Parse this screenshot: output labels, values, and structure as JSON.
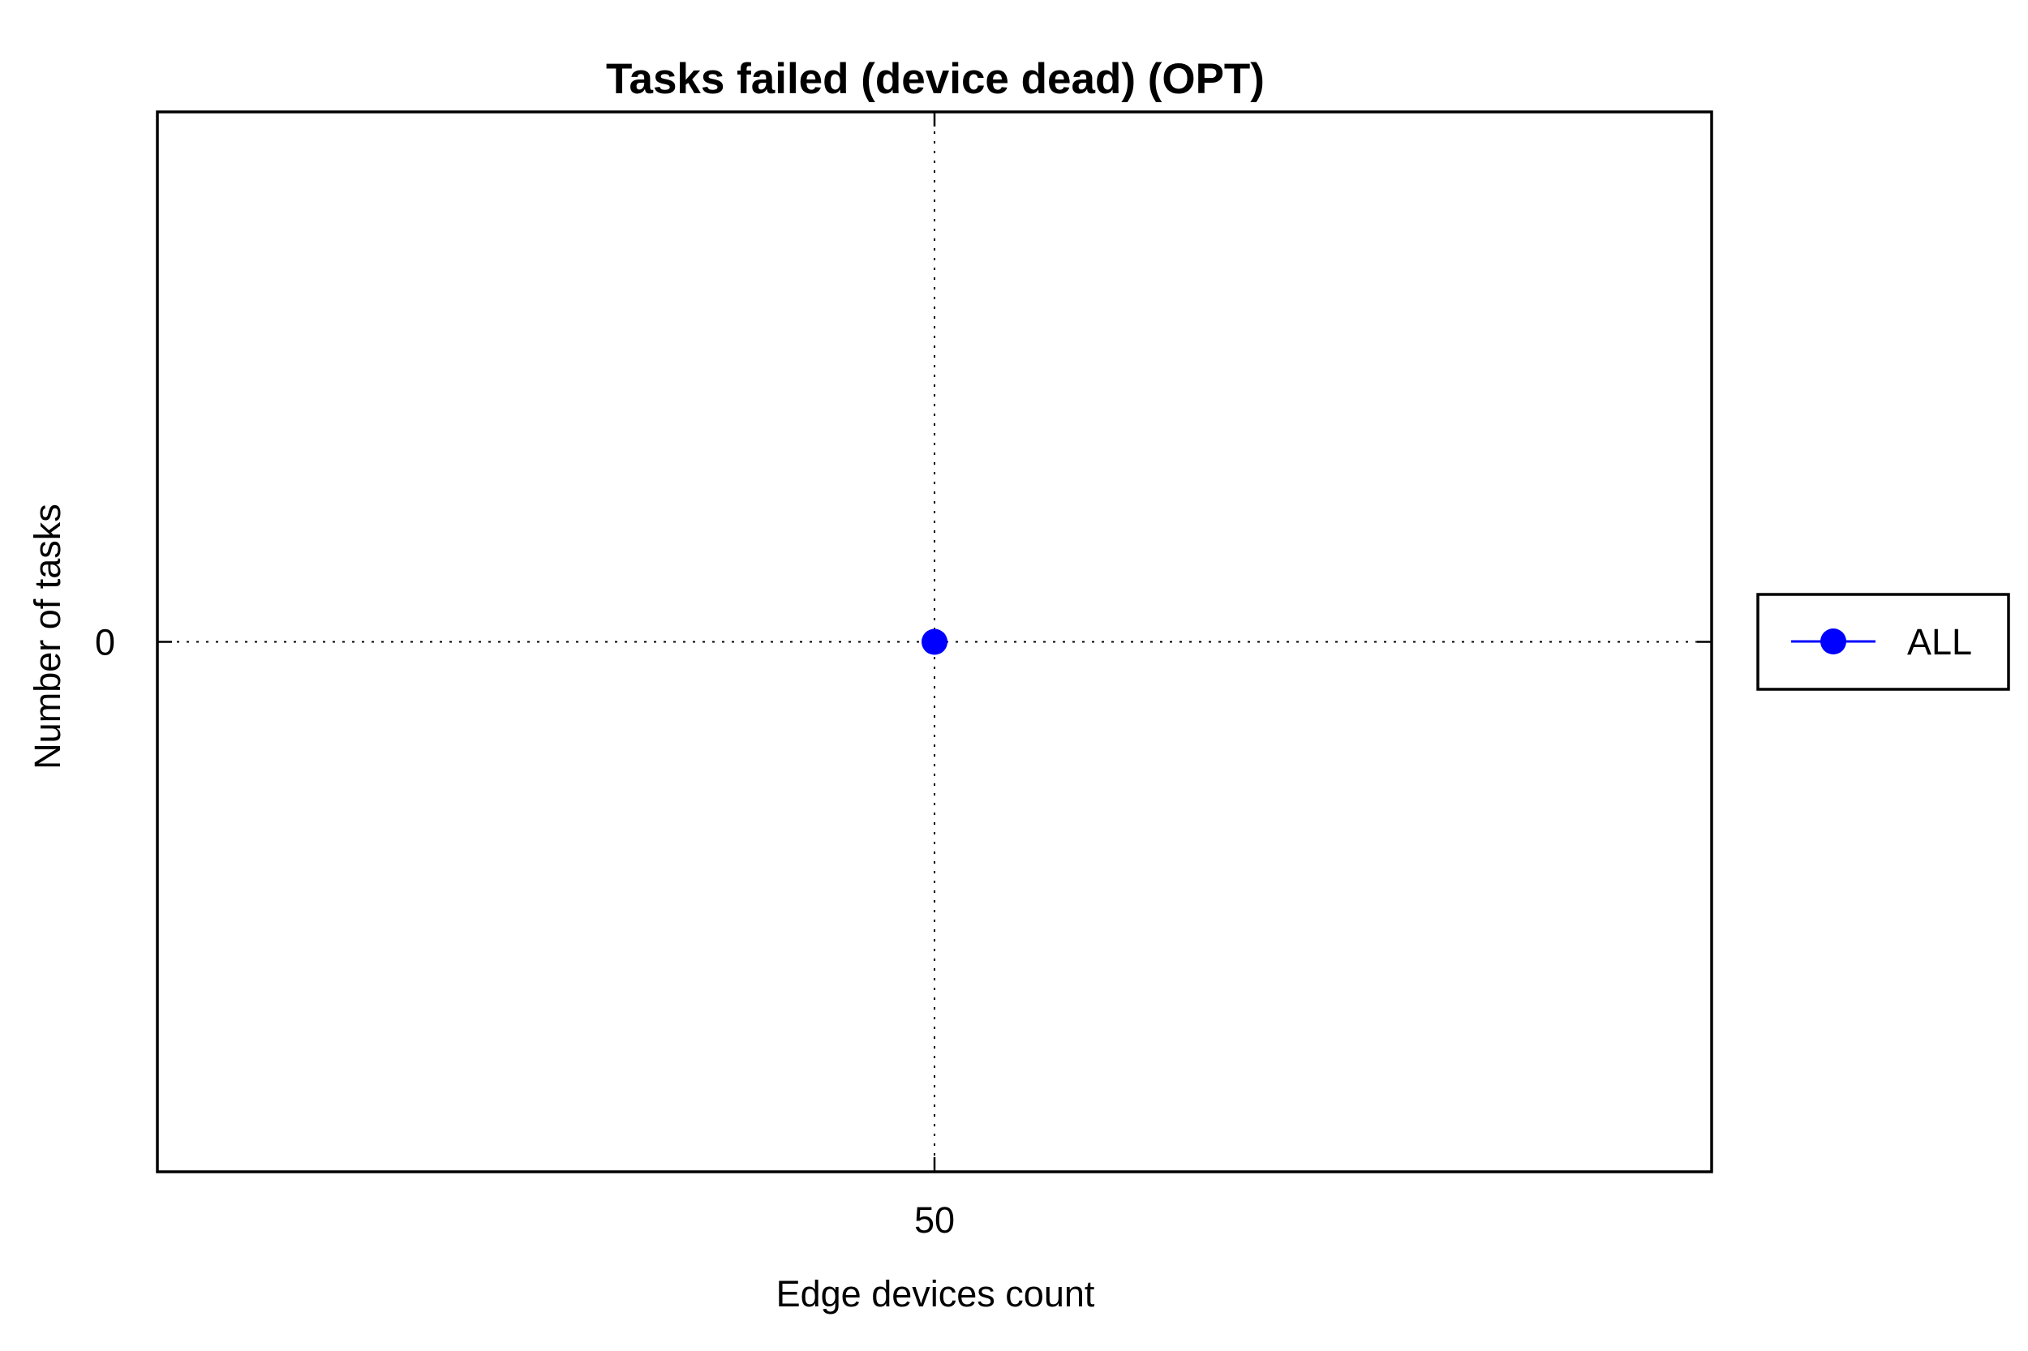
{
  "chart_data": {
    "type": "line",
    "title": "Tasks failed (device dead) (OPT)",
    "xlabel": "Edge devices count",
    "ylabel": "Number of tasks",
    "x_ticks": [
      "50"
    ],
    "y_ticks": [
      "0"
    ],
    "xlim": [
      49,
      51
    ],
    "ylim": [
      -1,
      1
    ],
    "grid": true,
    "legend_position": "outside-right",
    "series": [
      {
        "name": "ALL",
        "color": "#0000ff",
        "marker": "circle",
        "x": [
          50
        ],
        "y": [
          0
        ]
      }
    ]
  }
}
